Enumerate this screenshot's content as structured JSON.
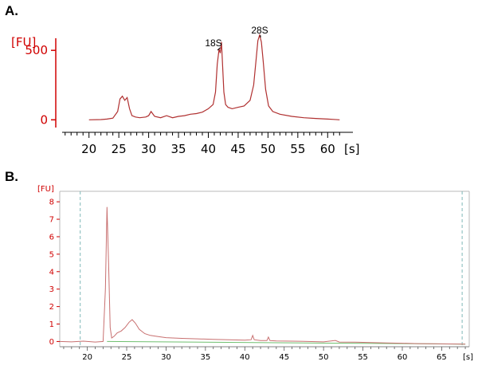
{
  "panels": [
    {
      "label": "A."
    },
    {
      "label": "B."
    }
  ],
  "chart_data": [
    {
      "type": "line",
      "y_unit_label": "[FU]",
      "x_unit_label": "[s]",
      "xlim": [
        15.5,
        62.5
      ],
      "ylim": [
        -90,
        610
      ],
      "x_ticks": [
        20,
        25,
        30,
        35,
        40,
        45,
        50,
        55,
        60
      ],
      "y_ticks": [
        0,
        500
      ],
      "grid": false,
      "colors": {
        "axis_y": "#d00000",
        "trace": "#b03030",
        "axis_x": "#000000"
      },
      "annotations": [
        {
          "text": "18S",
          "x": 42.0,
          "y": 520
        },
        {
          "text": "28S",
          "x": 48.6,
          "y": 620
        }
      ],
      "series": [
        {
          "x": [
            20.0,
            22.0,
            23.0,
            24.0,
            24.8,
            25.2,
            25.6,
            26.0,
            26.4,
            26.8,
            27.2,
            27.8,
            28.5,
            29.5,
            30.0,
            30.4,
            31.0,
            32.0,
            33.0,
            34.0,
            35.0,
            36.0,
            37.0,
            38.0,
            39.0,
            40.0,
            40.8,
            41.2,
            41.5,
            41.8,
            42.0,
            42.2,
            42.4,
            42.6,
            42.9,
            43.3,
            44.0,
            45.0,
            46.0,
            47.0,
            47.6,
            48.0,
            48.3,
            48.6,
            48.9,
            49.2,
            49.6,
            50.1,
            50.8,
            52.0,
            54.0,
            56.0,
            58.0,
            60.0,
            61.0,
            62.0
          ],
          "y": [
            0,
            2,
            5,
            12,
            60,
            150,
            170,
            140,
            160,
            80,
            30,
            20,
            15,
            20,
            30,
            60,
            25,
            15,
            30,
            15,
            25,
            30,
            40,
            45,
            55,
            80,
            110,
            200,
            400,
            510,
            480,
            560,
            380,
            200,
            110,
            90,
            80,
            90,
            100,
            140,
            250,
            430,
            570,
            610,
            560,
            420,
            220,
            100,
            60,
            40,
            25,
            15,
            10,
            5,
            3,
            0
          ]
        }
      ]
    },
    {
      "type": "line",
      "y_unit_label": "[FU]",
      "x_unit_label": "[s]",
      "xlim": [
        16.5,
        68.5
      ],
      "ylim": [
        -0.3,
        8.6
      ],
      "x_ticks": [
        20,
        25,
        30,
        35,
        40,
        45,
        50,
        55,
        60,
        65
      ],
      "y_ticks": [
        0,
        1,
        2,
        3,
        4,
        5,
        6,
        7,
        8
      ],
      "grid": false,
      "markers_x": [
        19.1,
        67.6
      ],
      "colors": {
        "axis_y": "#d00000",
        "trace": "#c87070",
        "baseline": "#6fbf6f",
        "marker": "#7fb8b8",
        "axis_x": "#000000"
      },
      "baseline": {
        "x": [
          22.5,
          68.0
        ],
        "y": [
          0.0,
          -0.15
        ]
      },
      "series": [
        {
          "x": [
            16.5,
            18.0,
            19.5,
            21.0,
            22.0,
            22.3,
            22.5,
            22.7,
            22.9,
            23.1,
            23.4,
            23.8,
            24.3,
            24.8,
            25.3,
            25.7,
            26.1,
            26.6,
            27.3,
            28.0,
            29.0,
            30.0,
            32.0,
            34.0,
            36.0,
            38.0,
            40.0,
            40.8,
            41.0,
            41.2,
            42.0,
            42.8,
            43.0,
            43.2,
            44.0,
            46.0,
            48.0,
            50.0,
            51.5,
            52.0,
            54.0,
            56.0,
            58.0,
            60.0,
            62.0,
            64.0,
            66.0,
            68.0
          ],
          "y": [
            0.0,
            -0.02,
            0.02,
            -0.03,
            0.0,
            3.0,
            7.7,
            4.5,
            0.8,
            0.2,
            0.3,
            0.5,
            0.6,
            0.8,
            1.1,
            1.25,
            1.05,
            0.7,
            0.45,
            0.35,
            0.28,
            0.22,
            0.18,
            0.15,
            0.12,
            0.1,
            0.08,
            0.1,
            0.35,
            0.1,
            0.05,
            0.05,
            0.25,
            0.05,
            0.03,
            0.02,
            0.0,
            -0.02,
            0.06,
            -0.03,
            -0.04,
            -0.06,
            -0.08,
            -0.1,
            -0.12,
            -0.13,
            -0.14,
            -0.15
          ]
        }
      ]
    }
  ]
}
